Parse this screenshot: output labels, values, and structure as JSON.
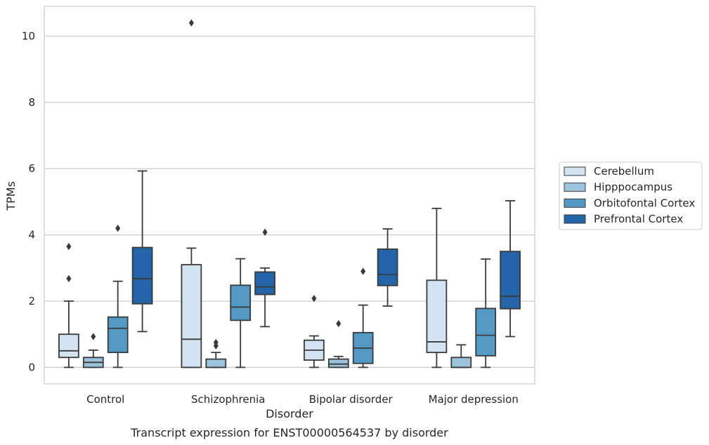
{
  "chart_data": {
    "type": "boxplot",
    "xlabel": "Disorder",
    "ylabel": "TPMs",
    "caption": "Transcript expression for ENST00000564537 by disorder",
    "ylim": [
      -0.5,
      10.9
    ],
    "yticks": [
      0,
      2,
      4,
      6,
      8,
      10
    ],
    "grid": true,
    "legend_position": "right",
    "categories": [
      "Control",
      "Schizophrenia",
      "Bipolar disorder",
      "Major depression"
    ],
    "series": [
      {
        "name": "Cerebellum",
        "color": "#d4e3f2",
        "boxes": [
          {
            "whisker_low": 0,
            "q1": 0.3,
            "median": 0.5,
            "q3": 1.0,
            "whisker_high": 2.0,
            "outliers": [
              2.68,
              3.65
            ]
          },
          {
            "whisker_low": 0,
            "q1": 0,
            "median": 0.85,
            "q3": 3.1,
            "whisker_high": 3.6,
            "outliers": [
              10.4
            ]
          },
          {
            "whisker_low": 0,
            "q1": 0.22,
            "median": 0.52,
            "q3": 0.82,
            "whisker_high": 0.95,
            "outliers": [
              2.08
            ]
          },
          {
            "whisker_low": 0,
            "q1": 0.45,
            "median": 0.77,
            "q3": 2.63,
            "whisker_high": 4.8,
            "outliers": []
          }
        ]
      },
      {
        "name": "Hipppocampus",
        "color": "#9cc3dc",
        "boxes": [
          {
            "whisker_low": 0,
            "q1": 0,
            "median": 0.15,
            "q3": 0.3,
            "whisker_high": 0.52,
            "outliers": [
              0.93
            ]
          },
          {
            "whisker_low": 0,
            "q1": 0,
            "median": 0,
            "q3": 0.25,
            "whisker_high": 0.45,
            "outliers": [
              0.65,
              0.75
            ]
          },
          {
            "whisker_low": 0,
            "q1": 0,
            "median": 0.1,
            "q3": 0.25,
            "whisker_high": 0.33,
            "outliers": [
              1.32
            ]
          },
          {
            "whisker_low": 0,
            "q1": 0,
            "median": 0,
            "q3": 0.3,
            "whisker_high": 0.68,
            "outliers": []
          }
        ]
      },
      {
        "name": "Orbitofontal Cortex",
        "color": "#5399c6",
        "boxes": [
          {
            "whisker_low": 0,
            "q1": 0.45,
            "median": 1.18,
            "q3": 1.52,
            "whisker_high": 2.6,
            "outliers": [
              4.2
            ]
          },
          {
            "whisker_low": 0,
            "q1": 1.42,
            "median": 1.82,
            "q3": 2.48,
            "whisker_high": 3.28,
            "outliers": []
          },
          {
            "whisker_low": 0,
            "q1": 0.12,
            "median": 0.58,
            "q3": 1.05,
            "whisker_high": 1.88,
            "outliers": [
              2.9
            ]
          },
          {
            "whisker_low": 0,
            "q1": 0.35,
            "median": 0.97,
            "q3": 1.78,
            "whisker_high": 3.27,
            "outliers": []
          }
        ]
      },
      {
        "name": "Prefrontal Cortex",
        "color": "#2365a8",
        "boxes": [
          {
            "whisker_low": 1.08,
            "q1": 1.92,
            "median": 2.68,
            "q3": 3.62,
            "whisker_high": 5.93,
            "outliers": []
          },
          {
            "whisker_low": 1.23,
            "q1": 2.2,
            "median": 2.43,
            "q3": 2.88,
            "whisker_high": 3.0,
            "outliers": [
              4.08
            ]
          },
          {
            "whisker_low": 1.85,
            "q1": 2.47,
            "median": 2.8,
            "q3": 3.57,
            "whisker_high": 4.18,
            "outliers": []
          },
          {
            "whisker_low": 0.93,
            "q1": 1.77,
            "median": 2.15,
            "q3": 3.5,
            "whisker_high": 5.03,
            "outliers": []
          }
        ]
      }
    ]
  }
}
